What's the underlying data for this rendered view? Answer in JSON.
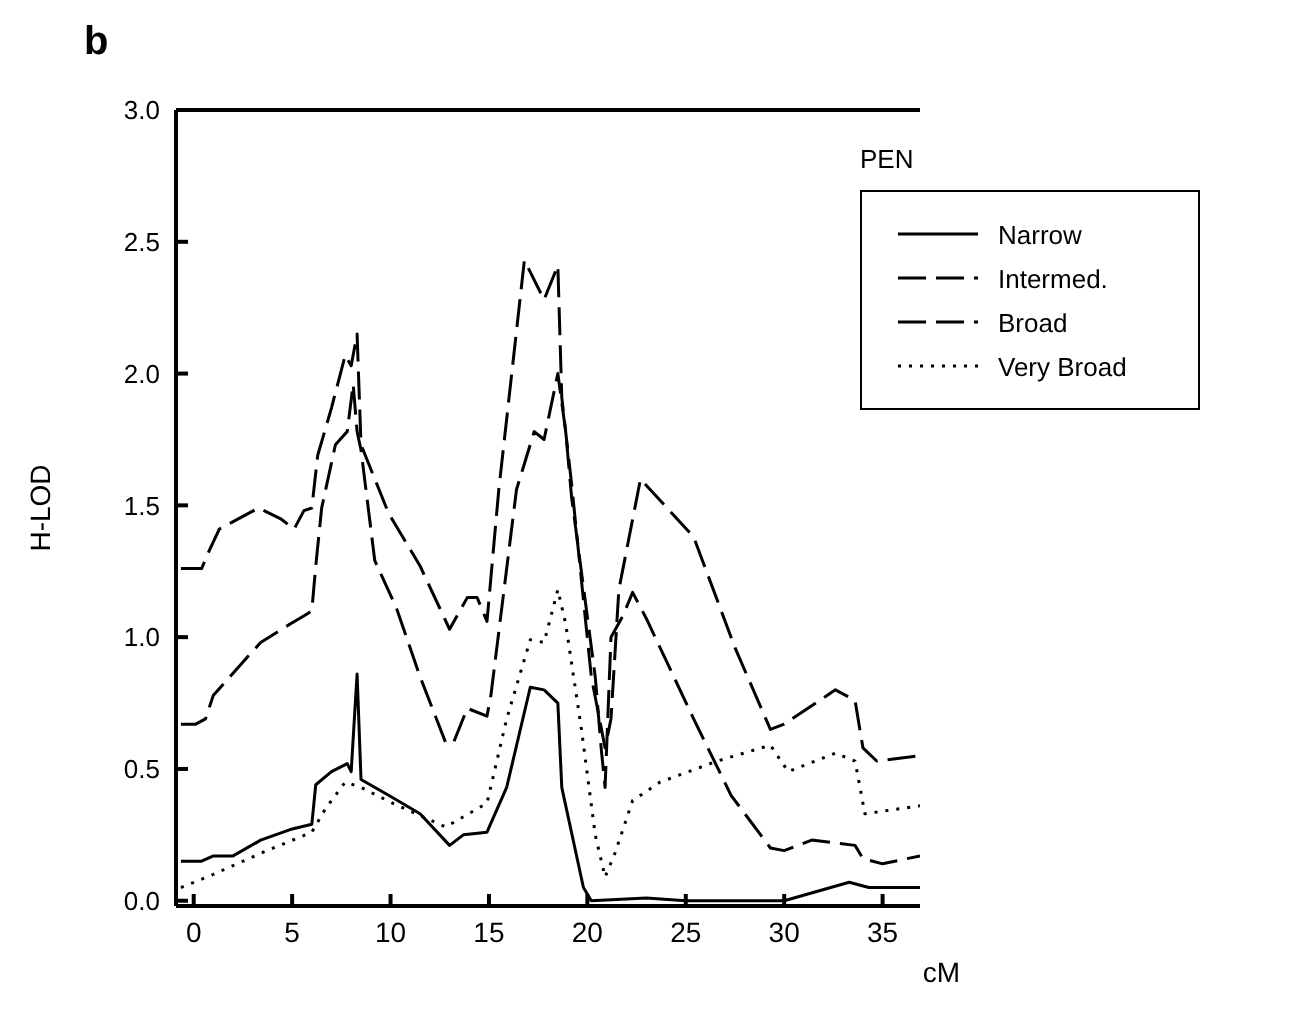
{
  "chart_data": {
    "type": "line",
    "xlabel": "cM",
    "ylabel": "H-LOD",
    "legend_title": "PEN",
    "annotations": [
      "b"
    ],
    "xlim": [
      -0.9,
      36.9
    ],
    "xticks": [
      0,
      5,
      10,
      15,
      20,
      25,
      30,
      35
    ],
    "ylim": [
      -0.02,
      3.0
    ],
    "yticks": [
      {
        "value": 0,
        "label": "0.0"
      },
      {
        "value": 0.5,
        "label": "0.5"
      },
      {
        "value": 1,
        "label": "1.0"
      },
      {
        "value": 1.5,
        "label": "1.5"
      },
      {
        "value": 2,
        "label": "2.0"
      },
      {
        "value": 2.5,
        "label": "2.5"
      },
      {
        "value": 3,
        "label": "3.0"
      }
    ],
    "grid": false,
    "legend": "top right",
    "marker": "none",
    "series": [
      {
        "name": "Narrow",
        "color": "#000000",
        "line_style": "solid",
        "x": [
          -0.65,
          0.4,
          1.0,
          2.0,
          3.4,
          4.9,
          6.0,
          6.2,
          7.0,
          7.8,
          8.0,
          8.3,
          8.5,
          9.9,
          11.5,
          13.0,
          13.7,
          14.9,
          15.9,
          17.1,
          17.8,
          18.5,
          18.7,
          19.8,
          20.2,
          23.0,
          25.0,
          30.0,
          33.3,
          34.3,
          36.9
        ],
        "values": [
          0.15,
          0.15,
          0.17,
          0.17,
          0.23,
          0.27,
          0.29,
          0.44,
          0.49,
          0.52,
          0.49,
          0.86,
          0.46,
          0.4,
          0.33,
          0.21,
          0.25,
          0.26,
          0.43,
          0.81,
          0.8,
          0.75,
          0.43,
          0.05,
          0.0,
          0.01,
          0.0,
          0.0,
          0.07,
          0.05,
          0.05
        ]
      },
      {
        "name": "Intermed.",
        "color": "#000000",
        "line_style": "dashed",
        "x": [
          -0.65,
          0.1,
          0.6,
          1.0,
          2.2,
          3.4,
          4.9,
          5.8,
          6.0,
          6.2,
          6.5,
          7.2,
          7.8,
          8.1,
          8.3,
          8.5,
          9.2,
          10.3,
          11.5,
          12.8,
          13.2,
          13.9,
          14.9,
          15.1,
          16.4,
          17.3,
          17.8,
          18.5,
          18.9,
          19.2,
          20.4,
          20.7,
          20.9,
          21.2,
          21.8,
          22.3,
          23.0,
          25.4,
          27.3,
          29.3,
          30.0,
          31.4,
          33.6,
          34.0,
          35.0,
          36.9
        ],
        "values": [
          0.67,
          0.67,
          0.69,
          0.78,
          0.88,
          0.98,
          1.05,
          1.09,
          1.1,
          1.27,
          1.49,
          1.73,
          1.78,
          1.96,
          1.78,
          1.71,
          1.29,
          1.11,
          0.85,
          0.6,
          0.6,
          0.73,
          0.7,
          0.78,
          1.56,
          1.78,
          1.75,
          2.0,
          1.78,
          1.53,
          0.85,
          0.58,
          0.43,
          1.0,
          1.08,
          1.17,
          1.07,
          0.69,
          0.4,
          0.2,
          0.19,
          0.23,
          0.21,
          0.16,
          0.14,
          0.17
        ]
      },
      {
        "name": "Broad",
        "color": "#000000",
        "line_style": "dashed",
        "x": [
          -0.65,
          0.4,
          0.8,
          1.3,
          3.3,
          4.4,
          5.1,
          5.6,
          6.0,
          6.3,
          7.0,
          7.7,
          8.0,
          8.3,
          8.5,
          9.9,
          11.5,
          13.0,
          13.9,
          14.4,
          14.9,
          15.5,
          16.8,
          17.8,
          18.5,
          18.7,
          19.2,
          20.2,
          20.9,
          21.2,
          21.6,
          22.7,
          25.4,
          27.5,
          29.3,
          30.0,
          30.4,
          32.6,
          33.6,
          34.0,
          34.7,
          36.9
        ],
        "values": [
          1.26,
          1.26,
          1.33,
          1.41,
          1.49,
          1.45,
          1.41,
          1.48,
          1.49,
          1.69,
          1.87,
          2.07,
          2.03,
          2.15,
          1.73,
          1.47,
          1.27,
          1.03,
          1.15,
          1.15,
          1.06,
          1.56,
          2.43,
          2.28,
          2.41,
          1.91,
          1.58,
          0.85,
          0.58,
          0.69,
          1.18,
          1.6,
          1.38,
          0.96,
          0.65,
          0.67,
          0.69,
          0.8,
          0.76,
          0.58,
          0.53,
          0.55
        ]
      },
      {
        "name": "Very Broad",
        "color": "#000000",
        "line_style": "dotted",
        "x": [
          -0.65,
          1.0,
          3.4,
          6.0,
          6.7,
          7.7,
          8.5,
          10.1,
          12.8,
          14.9,
          15.9,
          17.1,
          17.8,
          18.5,
          18.9,
          19.7,
          20.4,
          20.9,
          21.4,
          22.3,
          23.7,
          26.6,
          29.3,
          30.2,
          32.6,
          33.6,
          34.1,
          36.9
        ],
        "values": [
          0.05,
          0.1,
          0.18,
          0.26,
          0.35,
          0.45,
          0.43,
          0.37,
          0.28,
          0.37,
          0.69,
          0.99,
          0.98,
          1.18,
          1.05,
          0.65,
          0.25,
          0.09,
          0.18,
          0.38,
          0.45,
          0.53,
          0.59,
          0.49,
          0.56,
          0.53,
          0.33,
          0.36
        ]
      }
    ]
  }
}
